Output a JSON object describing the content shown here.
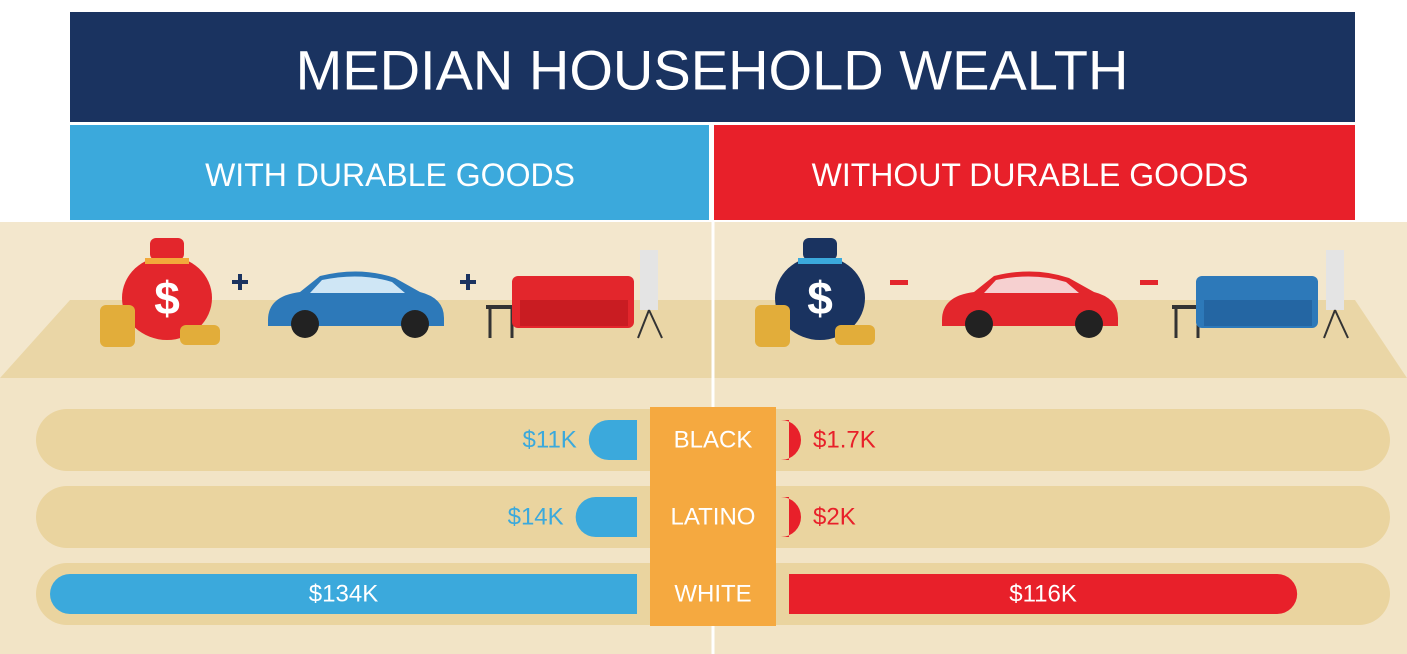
{
  "chart_data": {
    "type": "butterfly",
    "title": "MEDIAN HOUSEHOLD WEALTH",
    "categories": [
      "BLACK",
      "LATINO",
      "WHITE"
    ],
    "bag_symbol": "$",
    "series": [
      {
        "name": "WITH DURABLE GOODS",
        "color": "#3ba9dc",
        "values": [
          11,
          14,
          134
        ],
        "value_labels": [
          "$11K",
          "$14K",
          "$134K"
        ]
      },
      {
        "name": "WITHOUT DURABLE GOODS",
        "color": "#e8202a",
        "values": [
          1.7,
          2,
          116
        ],
        "value_labels": [
          "$1.7K",
          "$2K",
          "$116K"
        ]
      }
    ]
  }
}
